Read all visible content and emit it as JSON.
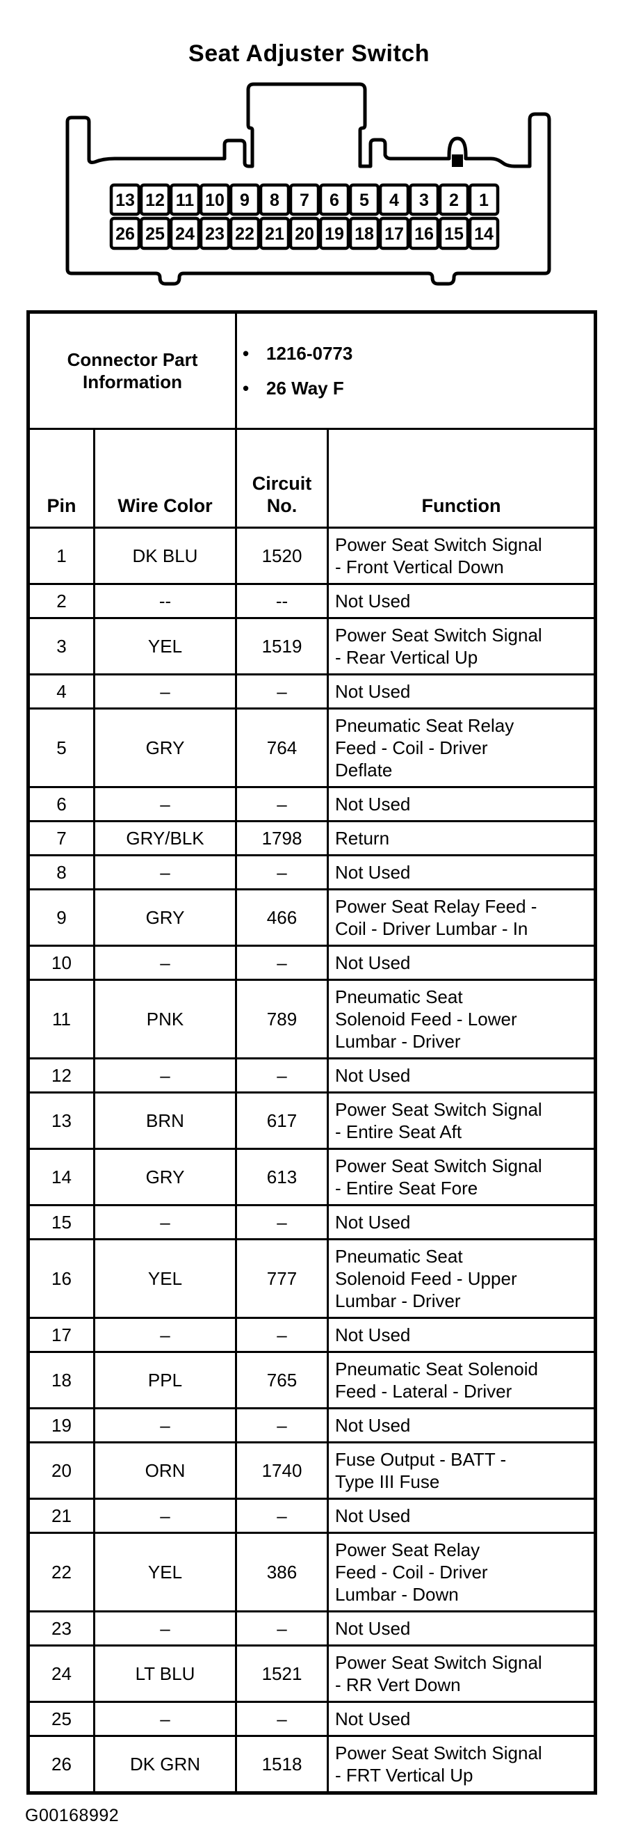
{
  "title": "Seat Adjuster Switch",
  "connector": {
    "pin_rows": [
      [
        "13",
        "12",
        "11",
        "10",
        "9",
        "8",
        "7",
        "6",
        "5",
        "4",
        "3",
        "2",
        "1"
      ],
      [
        "26",
        "25",
        "24",
        "23",
        "22",
        "21",
        "20",
        "19",
        "18",
        "17",
        "16",
        "15",
        "14"
      ]
    ]
  },
  "info": {
    "label_line1": "Connector Part",
    "label_line2": "Information",
    "bullet_char": "•",
    "bullets": [
      "1216-0773",
      "26 Way F"
    ]
  },
  "table": {
    "headers": {
      "pin": "Pin",
      "wire_color": "Wire Color",
      "circuit_line1": "Circuit",
      "circuit_line2": "No.",
      "function": "Function"
    },
    "rows": [
      {
        "pin": "1",
        "wire_color": "DK BLU",
        "circuit": "1520",
        "function": [
          "Power Seat Switch Signal",
          "- Front Vertical Down"
        ]
      },
      {
        "pin": "2",
        "wire_color": "--",
        "circuit": "--",
        "function": [
          "Not Used"
        ]
      },
      {
        "pin": "3",
        "wire_color": "YEL",
        "circuit": "1519",
        "function": [
          "Power Seat Switch Signal",
          "- Rear Vertical Up"
        ]
      },
      {
        "pin": "4",
        "wire_color": "–",
        "circuit": "–",
        "function": [
          "Not Used"
        ]
      },
      {
        "pin": "5",
        "wire_color": "GRY",
        "circuit": "764",
        "function": [
          "Pneumatic Seat Relay",
          "Feed - Coil - Driver",
          "Deflate"
        ]
      },
      {
        "pin": "6",
        "wire_color": "–",
        "circuit": "–",
        "function": [
          "Not Used"
        ]
      },
      {
        "pin": "7",
        "wire_color": "GRY/BLK",
        "circuit": "1798",
        "function": [
          "Return"
        ]
      },
      {
        "pin": "8",
        "wire_color": "–",
        "circuit": "–",
        "function": [
          "Not Used"
        ]
      },
      {
        "pin": "9",
        "wire_color": "GRY",
        "circuit": "466",
        "function": [
          "Power Seat Relay Feed -",
          "Coil - Driver Lumbar - In"
        ]
      },
      {
        "pin": "10",
        "wire_color": "–",
        "circuit": "–",
        "function": [
          "Not Used"
        ]
      },
      {
        "pin": "11",
        "wire_color": "PNK",
        "circuit": "789",
        "function": [
          "Pneumatic Seat",
          "Solenoid Feed - Lower",
          "Lumbar - Driver"
        ]
      },
      {
        "pin": "12",
        "wire_color": "–",
        "circuit": "–",
        "function": [
          "Not Used"
        ]
      },
      {
        "pin": "13",
        "wire_color": "BRN",
        "circuit": "617",
        "function": [
          "Power Seat Switch Signal",
          "- Entire Seat Aft"
        ]
      },
      {
        "pin": "14",
        "wire_color": "GRY",
        "circuit": "613",
        "function": [
          "Power Seat Switch Signal",
          "- Entire Seat Fore"
        ]
      },
      {
        "pin": "15",
        "wire_color": "–",
        "circuit": "–",
        "function": [
          "Not Used"
        ]
      },
      {
        "pin": "16",
        "wire_color": "YEL",
        "circuit": "777",
        "function": [
          "Pneumatic Seat",
          "Solenoid Feed - Upper",
          "Lumbar - Driver"
        ]
      },
      {
        "pin": "17",
        "wire_color": "–",
        "circuit": "–",
        "function": [
          "Not Used"
        ]
      },
      {
        "pin": "18",
        "wire_color": "PPL",
        "circuit": "765",
        "function": [
          "Pneumatic Seat Solenoid",
          "Feed - Lateral - Driver"
        ]
      },
      {
        "pin": "19",
        "wire_color": "–",
        "circuit": "–",
        "function": [
          "Not Used"
        ]
      },
      {
        "pin": "20",
        "wire_color": "ORN",
        "circuit": "1740",
        "function": [
          "Fuse Output - BATT -",
          "Type III Fuse"
        ]
      },
      {
        "pin": "21",
        "wire_color": "–",
        "circuit": "–",
        "function": [
          "Not Used"
        ]
      },
      {
        "pin": "22",
        "wire_color": "YEL",
        "circuit": "386",
        "function": [
          "Power Seat Relay",
          "Feed - Coil - Driver",
          "Lumbar - Down"
        ]
      },
      {
        "pin": "23",
        "wire_color": "–",
        "circuit": "–",
        "function": [
          "Not Used"
        ]
      },
      {
        "pin": "24",
        "wire_color": "LT BLU",
        "circuit": "1521",
        "function": [
          "Power Seat Switch Signal",
          "- RR Vert Down"
        ]
      },
      {
        "pin": "25",
        "wire_color": "–",
        "circuit": "–",
        "function": [
          "Not Used"
        ]
      },
      {
        "pin": "26",
        "wire_color": "DK GRN",
        "circuit": "1518",
        "function": [
          "Power Seat Switch Signal",
          "- FRT Vertical Up"
        ]
      }
    ]
  },
  "footer": {
    "figure_id": "G00168992"
  }
}
